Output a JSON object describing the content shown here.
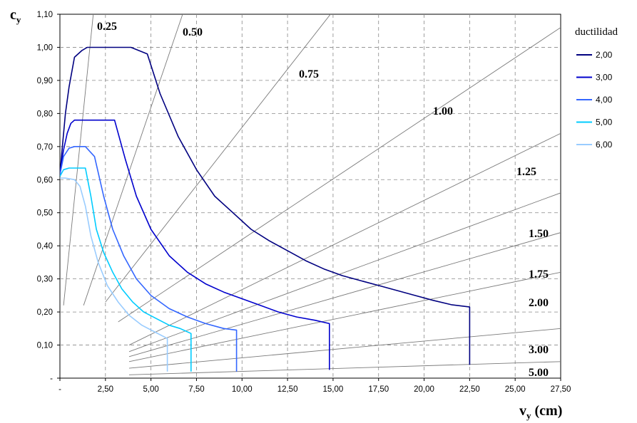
{
  "chart_data": {
    "type": "line",
    "xlabel": "v",
    "xlabel_sub": "y",
    "xlabel_unit": " (cm)",
    "ylabel": "c",
    "ylabel_sub": "y",
    "xlim": [
      0,
      27.5
    ],
    "ylim": [
      0,
      1.1
    ],
    "x_ticks": [
      0,
      2.5,
      5,
      7.5,
      10,
      12.5,
      15,
      17.5,
      20,
      22.5,
      25,
      27.5
    ],
    "x_tick_labels": [
      "-",
      "2,50",
      "5,00",
      "7,50",
      "10,00",
      "12,50",
      "15,00",
      "17,50",
      "20,00",
      "22,50",
      "25,00",
      "27,50"
    ],
    "y_ticks": [
      0,
      0.1,
      0.2,
      0.3,
      0.4,
      0.5,
      0.6,
      0.7,
      0.8,
      0.9,
      1.0,
      1.1
    ],
    "y_tick_labels": [
      "-",
      "0,10",
      "0,20",
      "0,30",
      "0,40",
      "0,50",
      "0,60",
      "0,70",
      "0,80",
      "0,90",
      "1,00",
      "1,10"
    ],
    "grid": true,
    "legend": {
      "title": "ductilidad",
      "position": "right"
    },
    "series": [
      {
        "name": "2,00",
        "color": "#000080",
        "x": [
          0,
          0.1,
          0.3,
          0.5,
          0.8,
          1.2,
          1.5,
          2.5,
          3.9,
          4.8,
          5.5,
          6.5,
          7.5,
          8.5,
          9.5,
          10.5,
          11.5,
          12.5,
          13.5,
          14.5,
          15.5,
          16.5,
          17.5,
          18.5,
          19.5,
          20.5,
          21.5,
          22.5,
          22.5
        ],
        "y": [
          0.61,
          0.68,
          0.8,
          0.88,
          0.97,
          0.99,
          1.0,
          1.0,
          1.0,
          0.98,
          0.86,
          0.73,
          0.63,
          0.55,
          0.5,
          0.45,
          0.415,
          0.385,
          0.355,
          0.33,
          0.31,
          0.295,
          0.28,
          0.265,
          0.25,
          0.235,
          0.222,
          0.215,
          0.04
        ]
      },
      {
        "name": "3,00",
        "color": "#0000CD",
        "x": [
          0,
          0.2,
          0.4,
          0.6,
          0.8,
          1.5,
          3.0,
          3.6,
          4.2,
          5.0,
          6.0,
          7.0,
          8.0,
          9.0,
          10.0,
          11.0,
          12.0,
          13.0,
          14.0,
          14.8,
          14.8
        ],
        "y": [
          0.62,
          0.69,
          0.74,
          0.77,
          0.78,
          0.78,
          0.78,
          0.66,
          0.55,
          0.45,
          0.37,
          0.32,
          0.285,
          0.26,
          0.24,
          0.22,
          0.2,
          0.185,
          0.175,
          0.165,
          0.025
        ]
      },
      {
        "name": "4,00",
        "color": "#3366FF",
        "x": [
          0,
          0.2,
          0.5,
          0.8,
          1.4,
          1.9,
          2.4,
          2.9,
          3.5,
          4.2,
          5.0,
          6.0,
          7.0,
          8.0,
          9.0,
          9.7,
          9.7
        ],
        "y": [
          0.615,
          0.67,
          0.695,
          0.7,
          0.7,
          0.67,
          0.55,
          0.45,
          0.37,
          0.3,
          0.25,
          0.21,
          0.185,
          0.165,
          0.15,
          0.145,
          0.02
        ]
      },
      {
        "name": "5,00",
        "color": "#00CCFF",
        "x": [
          0,
          0.2,
          0.5,
          1.4,
          1.7,
          2.0,
          2.4,
          2.9,
          3.4,
          4.0,
          4.6,
          5.3,
          6.0,
          6.6,
          7.2,
          7.2
        ],
        "y": [
          0.61,
          0.63,
          0.635,
          0.635,
          0.55,
          0.45,
          0.38,
          0.32,
          0.27,
          0.23,
          0.2,
          0.18,
          0.16,
          0.15,
          0.135,
          0.02
        ]
      },
      {
        "name": "6,00",
        "color": "#99CCFF",
        "x": [
          0,
          0.3,
          0.8,
          1.1,
          1.4,
          1.7,
          2.1,
          2.6,
          3.2,
          3.8,
          4.5,
          5.2,
          5.9,
          5.9
        ],
        "y": [
          0.605,
          0.605,
          0.6,
          0.58,
          0.52,
          0.43,
          0.35,
          0.28,
          0.23,
          0.19,
          0.16,
          0.14,
          0.12,
          0.02
        ]
      }
    ],
    "ratio_lines": [
      {
        "label": "0.25",
        "x": [
          0.2,
          1.85
        ],
        "y": [
          0.22,
          1.11
        ]
      },
      {
        "label": "0.50",
        "x": [
          1.3,
          6.8
        ],
        "y": [
          0.22,
          1.11
        ]
      },
      {
        "label": "0.75",
        "x": [
          2.5,
          15.0
        ],
        "y": [
          0.23,
          1.11
        ]
      },
      {
        "label": "1.00",
        "x": [
          3.2,
          27.5
        ],
        "y": [
          0.17,
          1.06
        ]
      },
      {
        "label": "1.25",
        "x": [
          3.8,
          27.5
        ],
        "y": [
          0.1,
          0.74
        ]
      },
      {
        "label": "1.50",
        "x": [
          3.8,
          27.5
        ],
        "y": [
          0.08,
          0.56
        ]
      },
      {
        "label": "1.75",
        "x": [
          3.8,
          27.5
        ],
        "y": [
          0.065,
          0.44
        ]
      },
      {
        "label": "2.00",
        "x": [
          3.8,
          27.5
        ],
        "y": [
          0.05,
          0.32
        ]
      },
      {
        "label": "3.00",
        "x": [
          3.8,
          27.5
        ],
        "y": [
          0.03,
          0.15
        ]
      },
      {
        "label": "5.00",
        "x": [
          3.8,
          27.5
        ],
        "y": [
          0.01,
          0.05
        ]
      }
    ]
  }
}
